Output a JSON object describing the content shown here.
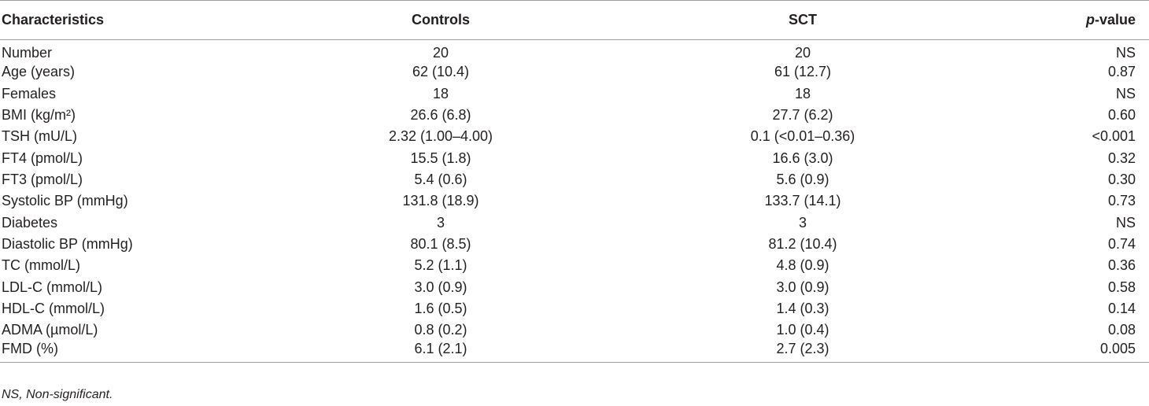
{
  "table": {
    "headers": {
      "characteristics": "Characteristics",
      "controls": "Controls",
      "sct": "SCT",
      "p_prefix": "p",
      "p_suffix": "-value"
    },
    "rows": [
      {
        "label": "Number",
        "controls": "20",
        "sct": "20",
        "p": "NS"
      },
      {
        "label": "Age (years)",
        "controls": "62 (10.4)",
        "sct": "61 (12.7)",
        "p": "0.87"
      },
      {
        "label": "Females",
        "controls": "18",
        "sct": "18",
        "p": "NS"
      },
      {
        "label": "BMI (kg/m²)",
        "controls": "26.6 (6.8)",
        "sct": "27.7 (6.2)",
        "p": "0.60"
      },
      {
        "label": "TSH (mU/L)",
        "controls": "2.32 (1.00–4.00)",
        "sct": "0.1 (<0.01–0.36)",
        "p": "<0.001"
      },
      {
        "label": "FT4 (pmol/L)",
        "controls": "15.5 (1.8)",
        "sct": "16.6 (3.0)",
        "p": "0.32"
      },
      {
        "label": "FT3 (pmol/L)",
        "controls": "5.4 (0.6)",
        "sct": "5.6 (0.9)",
        "p": "0.30"
      },
      {
        "label": "Systolic BP (mmHg)",
        "controls": "131.8 (18.9)",
        "sct": "133.7 (14.1)",
        "p": "0.73"
      },
      {
        "label": "Diabetes",
        "controls": "3",
        "sct": "3",
        "p": "NS"
      },
      {
        "label": "Diastolic BP (mmHg)",
        "controls": "80.1 (8.5)",
        "sct": "81.2 (10.4)",
        "p": "0.74"
      },
      {
        "label": "TC (mmol/L)",
        "controls": "5.2 (1.1)",
        "sct": "4.8 (0.9)",
        "p": "0.36"
      },
      {
        "label": "LDL-C (mmol/L)",
        "controls": "3.0 (0.9)",
        "sct": "3.0 (0.9)",
        "p": "0.58"
      },
      {
        "label": "HDL-C (mmol/L)",
        "controls": "1.6 (0.5)",
        "sct": "1.4 (0.3)",
        "p": "0.14"
      },
      {
        "label": "ADMA (µmol/L)",
        "controls": "0.8 (0.2)",
        "sct": "1.0 (0.4)",
        "p": "0.08"
      },
      {
        "label": "FMD (%)",
        "controls": "6.1 (2.1)",
        "sct": "2.7 (2.3)",
        "p": "0.005"
      }
    ]
  },
  "footnote": "NS, Non-significant.",
  "colors": {
    "rule": "#9d9d9d",
    "text": "#231f20"
  }
}
